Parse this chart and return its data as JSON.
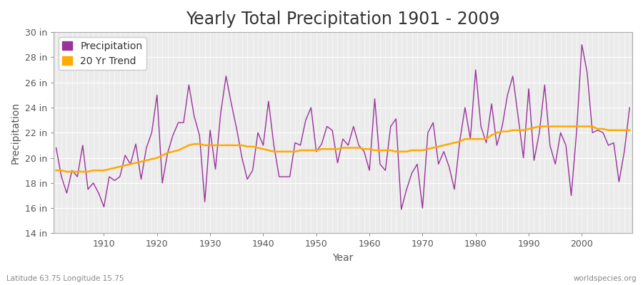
{
  "title": "Yearly Total Precipitation 1901 - 2009",
  "xlabel": "Year",
  "ylabel": "Precipitation",
  "bottom_left_label": "Latitude 63.75 Longitude 15.75",
  "bottom_right_label": "worldspecies.org",
  "background_color": "#f5f5f5",
  "plot_bg_color": "#f0f0f0",
  "grid_color": "#dddddd",
  "line_color": "#993399",
  "trend_color": "#ffaa00",
  "years": [
    1901,
    1902,
    1903,
    1904,
    1905,
    1906,
    1907,
    1908,
    1909,
    1910,
    1911,
    1912,
    1913,
    1914,
    1915,
    1916,
    1917,
    1918,
    1919,
    1920,
    1921,
    1922,
    1923,
    1924,
    1925,
    1926,
    1927,
    1928,
    1929,
    1930,
    1931,
    1932,
    1933,
    1934,
    1935,
    1936,
    1937,
    1938,
    1939,
    1940,
    1941,
    1942,
    1943,
    1944,
    1945,
    1946,
    1947,
    1948,
    1949,
    1950,
    1951,
    1952,
    1953,
    1954,
    1955,
    1956,
    1957,
    1958,
    1959,
    1960,
    1961,
    1962,
    1963,
    1964,
    1965,
    1966,
    1967,
    1968,
    1969,
    1970,
    1971,
    1972,
    1973,
    1974,
    1975,
    1976,
    1977,
    1978,
    1979,
    1980,
    1981,
    1982,
    1983,
    1984,
    1985,
    1986,
    1987,
    1988,
    1989,
    1990,
    1991,
    1992,
    1993,
    1994,
    1995,
    1996,
    1997,
    1998,
    1999,
    2000,
    2001,
    2002,
    2003,
    2004,
    2005,
    2006,
    2007,
    2008,
    2009
  ],
  "precip": [
    20.8,
    18.5,
    17.2,
    19.0,
    18.5,
    21.0,
    17.5,
    18.0,
    17.2,
    16.1,
    18.5,
    18.2,
    18.5,
    20.2,
    19.5,
    21.1,
    18.3,
    20.8,
    22.0,
    25.0,
    18.0,
    20.4,
    21.8,
    22.8,
    22.8,
    25.8,
    23.3,
    21.8,
    16.5,
    22.2,
    19.1,
    23.6,
    26.5,
    24.3,
    22.3,
    20.0,
    18.3,
    19.0,
    22.0,
    21.0,
    24.5,
    21.0,
    18.5,
    18.5,
    18.5,
    21.2,
    21.0,
    23.0,
    24.0,
    20.5,
    21.1,
    22.5,
    22.2,
    19.6,
    21.5,
    21.0,
    22.5,
    21.0,
    20.5,
    19.0,
    24.7,
    19.5,
    19.0,
    22.5,
    23.1,
    15.9,
    17.5,
    18.8,
    19.5,
    16.0,
    22.0,
    22.8,
    19.5,
    20.5,
    19.3,
    17.5,
    21.3,
    24.0,
    21.5,
    27.0,
    22.5,
    21.2,
    24.3,
    21.0,
    22.5,
    25.0,
    26.5,
    23.3,
    20.0,
    25.5,
    19.8,
    22.0,
    25.8,
    21.0,
    19.5,
    22.0,
    21.0,
    17.0,
    22.0,
    29.0,
    26.8,
    22.0,
    22.2,
    22.0,
    21.0,
    21.2,
    18.1,
    20.5,
    24.0
  ],
  "trend": [
    19.0,
    19.0,
    18.9,
    18.9,
    18.9,
    18.9,
    18.9,
    19.0,
    19.0,
    19.0,
    19.1,
    19.2,
    19.3,
    19.4,
    19.5,
    19.6,
    19.7,
    19.8,
    19.9,
    20.0,
    20.2,
    20.4,
    20.5,
    20.6,
    20.8,
    21.0,
    21.1,
    21.1,
    21.0,
    21.0,
    21.0,
    21.0,
    21.0,
    21.0,
    21.0,
    21.0,
    20.9,
    20.9,
    20.8,
    20.7,
    20.6,
    20.5,
    20.5,
    20.5,
    20.5,
    20.5,
    20.6,
    20.6,
    20.6,
    20.6,
    20.7,
    20.7,
    20.7,
    20.7,
    20.8,
    20.8,
    20.8,
    20.8,
    20.7,
    20.7,
    20.6,
    20.6,
    20.6,
    20.6,
    20.5,
    20.5,
    20.5,
    20.6,
    20.6,
    20.6,
    20.7,
    20.8,
    20.9,
    21.0,
    21.1,
    21.2,
    21.3,
    21.5,
    21.5,
    21.5,
    21.5,
    21.5,
    21.8,
    22.0,
    22.1,
    22.1,
    22.2,
    22.2,
    22.2,
    22.3,
    22.4,
    22.5,
    22.5,
    22.5,
    22.5,
    22.5,
    22.5,
    22.5,
    22.5,
    22.5,
    22.5,
    22.5,
    22.3,
    22.3,
    22.2,
    22.2,
    22.2,
    22.2,
    22.2
  ],
  "ylim": [
    14,
    30
  ],
  "yticks": [
    14,
    16,
    18,
    20,
    22,
    24,
    26,
    28,
    30
  ],
  "ytick_labels": [
    "14 in",
    "16 in",
    "18 in",
    "20 in",
    "22 in",
    "24 in",
    "26 in",
    "28 in",
    "30 in"
  ],
  "xticks": [
    1910,
    1920,
    1930,
    1940,
    1950,
    1960,
    1970,
    1980,
    1990,
    2000
  ],
  "title_fontsize": 17,
  "label_fontsize": 10,
  "tick_fontsize": 9
}
